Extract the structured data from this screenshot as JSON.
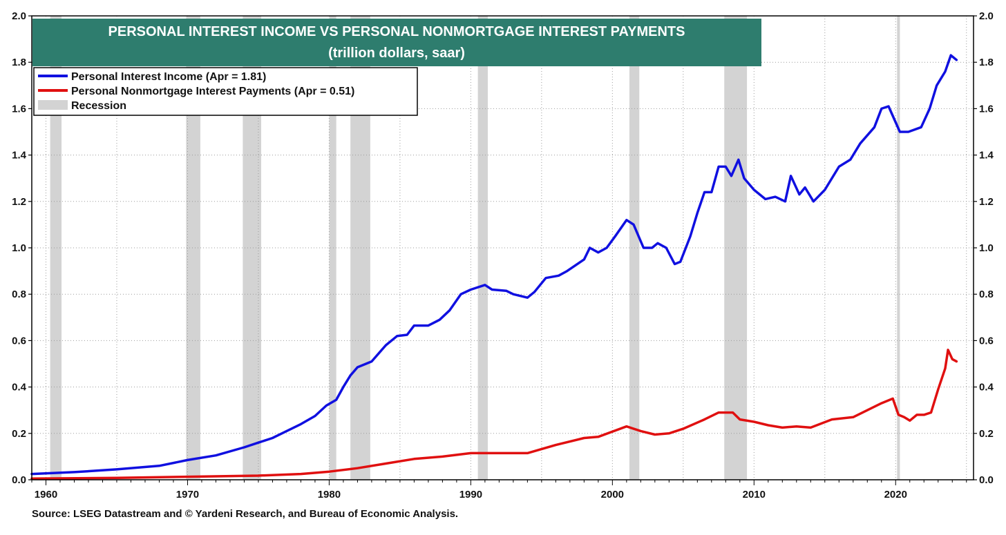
{
  "chart_data": {
    "type": "line",
    "title": "PERSONAL INTEREST INCOME VS PERSONAL NONMORTGAGE INTEREST PAYMENTS",
    "subtitle": "(trillion dollars, saar)",
    "source": "Source: LSEG Datastream and © Yardeni Research, and Bureau of Economic Analysis.",
    "xlim": [
      1959,
      2025.5
    ],
    "ylim": [
      0,
      2.0
    ],
    "x_ticks": [
      "1960",
      "1970",
      "1980",
      "1990",
      "2000",
      "2010",
      "2020"
    ],
    "y_ticks": [
      "0.0",
      "0.2",
      "0.4",
      "0.6",
      "0.8",
      "1.0",
      "1.2",
      "1.4",
      "1.6",
      "1.8",
      "2.0"
    ],
    "grid": true,
    "legend_position": "top-left",
    "legend": [
      {
        "label": "Personal Interest Income (Apr = 1.81)",
        "color": "#1010e0",
        "kind": "line"
      },
      {
        "label": "Personal Nonmortgage Interest Payments (Apr = 0.51)",
        "color": "#e01010",
        "kind": "line"
      },
      {
        "label": "Recession",
        "color": "#d3d3d3",
        "kind": "box"
      }
    ],
    "recessions": [
      [
        1960.3,
        1961.1
      ],
      [
        1969.9,
        1970.9
      ],
      [
        1973.9,
        1975.2
      ],
      [
        1980.0,
        1980.5
      ],
      [
        1981.5,
        1982.9
      ],
      [
        1990.5,
        1991.2
      ],
      [
        2001.2,
        2001.9
      ],
      [
        2007.9,
        2009.5
      ],
      [
        2020.1,
        2020.3
      ]
    ],
    "series": [
      {
        "name": "Personal Interest Income",
        "color": "#1010e0",
        "x": [
          1959,
          1962,
          1965,
          1968,
          1970,
          1972,
          1974,
          1975,
          1976,
          1977,
          1978,
          1979,
          1979.8,
          1980.5,
          1981,
          1981.5,
          1982,
          1983,
          1984,
          1984.8,
          1985.5,
          1986,
          1987,
          1987.8,
          1988.5,
          1989.3,
          1990,
          1991,
          1991.5,
          1992.5,
          1993,
          1994,
          1994.5,
          1995.3,
          1996.2,
          1996.8,
          1998,
          1998.4,
          1999,
          1999.6,
          2000.2,
          2001,
          2001.5,
          2002.2,
          2002.8,
          2003.2,
          2003.8,
          2004.4,
          2004.8,
          2005.5,
          2006,
          2006.5,
          2007,
          2007.5,
          2008,
          2008.4,
          2008.9,
          2009.3,
          2010,
          2010.8,
          2011.5,
          2012.2,
          2012.6,
          2013.2,
          2013.6,
          2014.2,
          2015,
          2016,
          2016.8,
          2017.5,
          2018.5,
          2019,
          2019.5,
          2020.3,
          2020.9,
          2021.8,
          2022.4,
          2022.9,
          2023.5,
          2023.9,
          2024.3
        ],
        "values": [
          0.025,
          0.033,
          0.045,
          0.06,
          0.085,
          0.105,
          0.14,
          0.16,
          0.18,
          0.21,
          0.24,
          0.275,
          0.32,
          0.345,
          0.4,
          0.45,
          0.485,
          0.51,
          0.58,
          0.62,
          0.625,
          0.665,
          0.665,
          0.69,
          0.73,
          0.8,
          0.82,
          0.84,
          0.82,
          0.815,
          0.8,
          0.785,
          0.81,
          0.87,
          0.88,
          0.9,
          0.95,
          1.0,
          0.98,
          1.0,
          1.05,
          1.12,
          1.1,
          1.0,
          1.0,
          1.02,
          1.0,
          0.93,
          0.94,
          1.05,
          1.15,
          1.24,
          1.24,
          1.35,
          1.35,
          1.31,
          1.38,
          1.3,
          1.25,
          1.21,
          1.22,
          1.2,
          1.31,
          1.23,
          1.26,
          1.2,
          1.25,
          1.35,
          1.38,
          1.45,
          1.52,
          1.6,
          1.61,
          1.5,
          1.5,
          1.52,
          1.6,
          1.7,
          1.76,
          1.83,
          1.81
        ]
      },
      {
        "name": "Personal Nonmortgage Interest Payments",
        "color": "#e01010",
        "x": [
          1959,
          1965,
          1970,
          1975,
          1978,
          1980,
          1982,
          1984,
          1986,
          1988,
          1990,
          1992,
          1994,
          1996,
          1998,
          1999,
          2001,
          2002,
          2003,
          2004,
          2005,
          2006.5,
          2007.5,
          2008.5,
          2009,
          2010,
          2011,
          2012,
          2013,
          2014,
          2015.5,
          2017,
          2018,
          2019,
          2019.8,
          2020.2,
          2020.6,
          2021,
          2021.5,
          2022,
          2022.5,
          2023,
          2023.5,
          2023.7,
          2024,
          2024.3
        ],
        "values": [
          0.005,
          0.008,
          0.013,
          0.018,
          0.025,
          0.035,
          0.05,
          0.07,
          0.09,
          0.1,
          0.115,
          0.115,
          0.115,
          0.15,
          0.18,
          0.185,
          0.23,
          0.21,
          0.195,
          0.2,
          0.22,
          0.26,
          0.29,
          0.29,
          0.26,
          0.25,
          0.235,
          0.225,
          0.23,
          0.225,
          0.26,
          0.27,
          0.3,
          0.33,
          0.35,
          0.28,
          0.27,
          0.255,
          0.28,
          0.28,
          0.29,
          0.39,
          0.48,
          0.56,
          0.52,
          0.51
        ]
      }
    ]
  }
}
